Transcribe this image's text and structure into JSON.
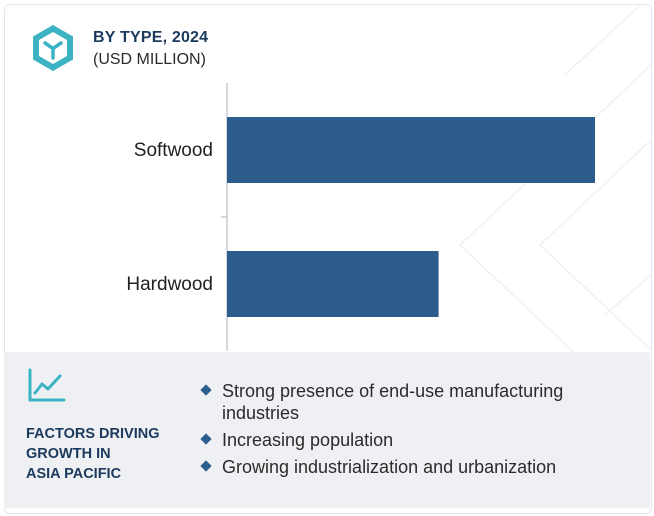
{
  "header": {
    "title": "BY TYPE, 2024",
    "subtitle": "(USD MILLION)"
  },
  "chart_data": {
    "type": "bar",
    "orientation": "horizontal",
    "title": "BY TYPE, 2024",
    "subtitle": "(USD MILLION)",
    "categories": [
      "Softwood",
      "Hardwood"
    ],
    "values": [
      100,
      57.5
    ],
    "value_note": "",
    "xlabel": "",
    "ylabel": "",
    "grid": false,
    "legend": "none",
    "bar_color": "#2d5d8d"
  },
  "factors": {
    "title_lines": [
      "FACTORS DRIVING",
      "GROWTH IN",
      "ASIA PACIFIC"
    ],
    "items": [
      "Strong presence of end-use manufacturing industries",
      "Increasing population",
      "Growing industrialization and urbanization"
    ]
  },
  "icons": {
    "logo": "cube-logo-icon",
    "factors": "line-chart-icon",
    "bullet": "diamond-bullet-icon"
  },
  "colors": {
    "accent": "#3bb3c3",
    "bar": "#2d5d8d",
    "heading": "#1b3a5c",
    "panel_bg": "#eef0f4"
  }
}
